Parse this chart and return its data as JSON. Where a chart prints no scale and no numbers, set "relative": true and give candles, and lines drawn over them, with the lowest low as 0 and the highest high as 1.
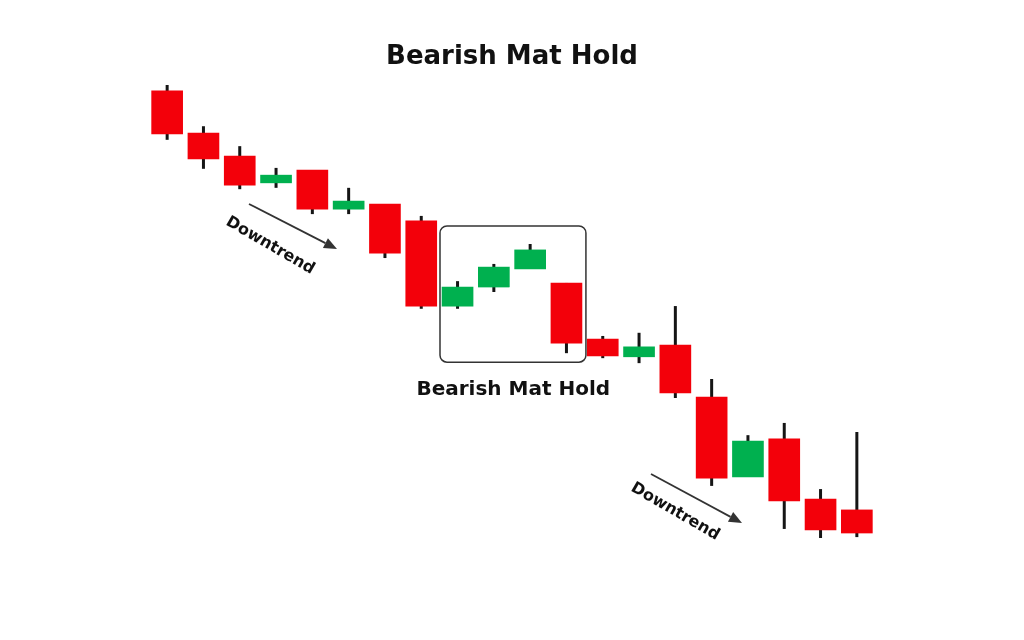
{
  "chart_data": {
    "type": "candlestick",
    "title": "Bearish Mat Hold",
    "relative": true,
    "categories": [
      null,
      null,
      null,
      null,
      null,
      null,
      null,
      null,
      null,
      null,
      null,
      null,
      null,
      null,
      null,
      null,
      null,
      null,
      null,
      null
    ],
    "ohlc": [
      [
        0.987,
        1,
        0.879,
        0.892
      ],
      [
        0.894,
        0.909,
        0.815,
        0.837
      ],
      [
        0.843,
        0.865,
        0.77,
        0.779
      ],
      [
        0.784,
        0.817,
        0.773,
        0.801
      ],
      [
        0.812,
        0.812,
        0.715,
        0.726
      ],
      [
        0.726,
        0.773,
        0.715,
        0.744
      ],
      [
        0.737,
        0.737,
        0.618,
        0.629
      ],
      [
        0.7,
        0.711,
        0.506,
        0.512
      ],
      [
        0.512,
        0.567,
        0.506,
        0.554
      ],
      [
        0.554,
        0.605,
        0.543,
        0.598
      ],
      [
        0.594,
        0.649,
        0.594,
        0.636
      ],
      [
        0.563,
        0.563,
        0.408,
        0.43
      ],
      [
        0.439,
        0.446,
        0.397,
        0.402
      ],
      [
        0.4,
        0.453,
        0.386,
        0.422
      ],
      [
        0.426,
        0.512,
        0.309,
        0.32
      ],
      [
        0.311,
        0.351,
        0.115,
        0.132
      ],
      [
        0.135,
        0.227,
        0.135,
        0.214
      ],
      [
        0.219,
        0.254,
        0.02,
        0.082
      ],
      [
        0.086,
        0.108,
        0,
        0.018
      ],
      [
        0.062,
        0.234,
        0.002,
        0.011
      ]
    ],
    "colors": [
      "#f3000a",
      "#f3000a",
      "#f3000a",
      "#00b04f",
      "#f3000a",
      "#00b04f",
      "#f3000a",
      "#f3000a",
      "#00b04f",
      "#00b04f",
      "#00b04f",
      "#f3000a",
      "#f3000a",
      "#00b04f",
      "#f3000a",
      "#f3000a",
      "#00b04f",
      "#f3000a",
      "#f3000a",
      "#f3000a"
    ],
    "annotations": [
      "Downtrend",
      "Bearish Mat Hold",
      "Downtrend"
    ]
  }
}
